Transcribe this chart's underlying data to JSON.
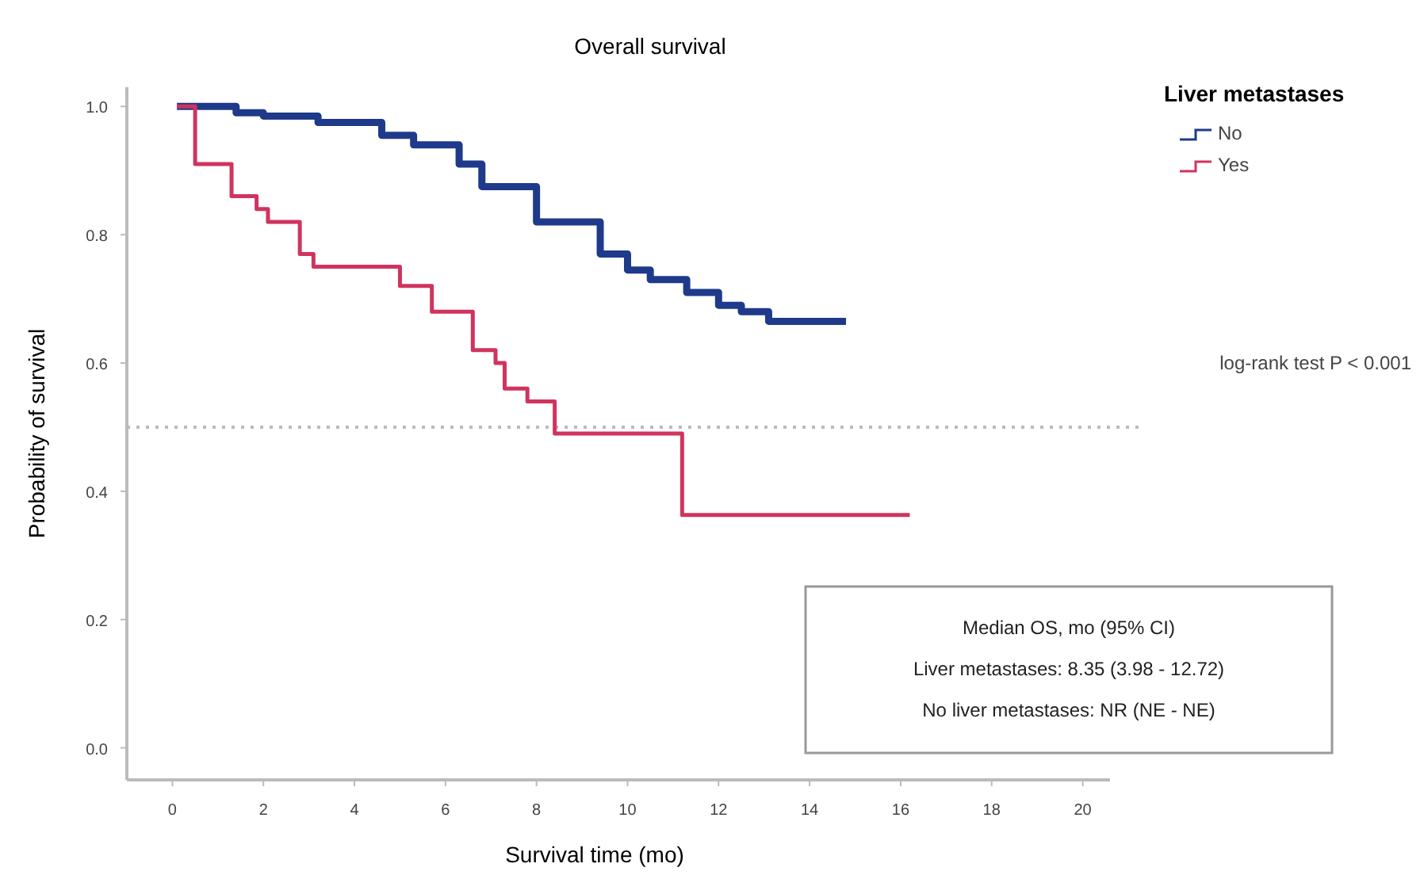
{
  "chart_data": {
    "type": "step",
    "title": "Overall survival",
    "xlabel": "Survival time (mo)",
    "ylabel": "Probability of survival",
    "legend_title": "Liver metastases",
    "legend": "top right",
    "grid": false,
    "line_style": "solid",
    "xlim": [
      -1,
      20.6
    ],
    "ylim": [
      -0.05,
      1.03
    ],
    "xticks": [
      0,
      2,
      4,
      6,
      8,
      10,
      12,
      14,
      16,
      18,
      20
    ],
    "yticks": [
      {
        "value": 0,
        "label": "0.0"
      },
      {
        "value": 0.2,
        "label": "0.2"
      },
      {
        "value": 0.4,
        "label": "0.4"
      },
      {
        "value": 0.6,
        "label": "0.6"
      },
      {
        "value": 0.8,
        "label": "0.8"
      },
      {
        "value": 1,
        "label": "1.0"
      }
    ],
    "series": [
      {
        "name": "No",
        "color": "#1f3a8a",
        "x": [
          0.1,
          1.4,
          2,
          3.2,
          4.6,
          5.3,
          6.3,
          6.8,
          8,
          9.4,
          10,
          10.5,
          11.3,
          12,
          12.5,
          13.1,
          14.8
        ],
        "values": [
          1,
          0.99,
          0.985,
          0.975,
          0.955,
          0.94,
          0.91,
          0.875,
          0.82,
          0.77,
          0.745,
          0.73,
          0.71,
          0.69,
          0.68,
          0.665,
          0.665
        ]
      },
      {
        "name": "Yes",
        "color": "#d0345e",
        "x": [
          0.1,
          0.5,
          1.3,
          1.85,
          2.1,
          2.8,
          3.1,
          5,
          5.7,
          6.6,
          7.1,
          7.3,
          7.8,
          8.4,
          11.2,
          16.2
        ],
        "values": [
          1,
          0.91,
          0.86,
          0.84,
          0.82,
          0.77,
          0.75,
          0.72,
          0.68,
          0.62,
          0.6,
          0.56,
          0.54,
          0.49,
          0.363,
          0.363
        ]
      }
    ],
    "ref_lines": [
      {
        "axis": "y",
        "value": 0.5,
        "color": "#bbbbbb",
        "line_style": "dotted"
      }
    ],
    "annotations": [
      "log-rank test P < 0.001",
      "Median OS, mo (95% CI)",
      "Liver metastases: 8.35 (3.98 - 12.72)",
      "No liver metastases: NR (NE - NE)"
    ]
  }
}
